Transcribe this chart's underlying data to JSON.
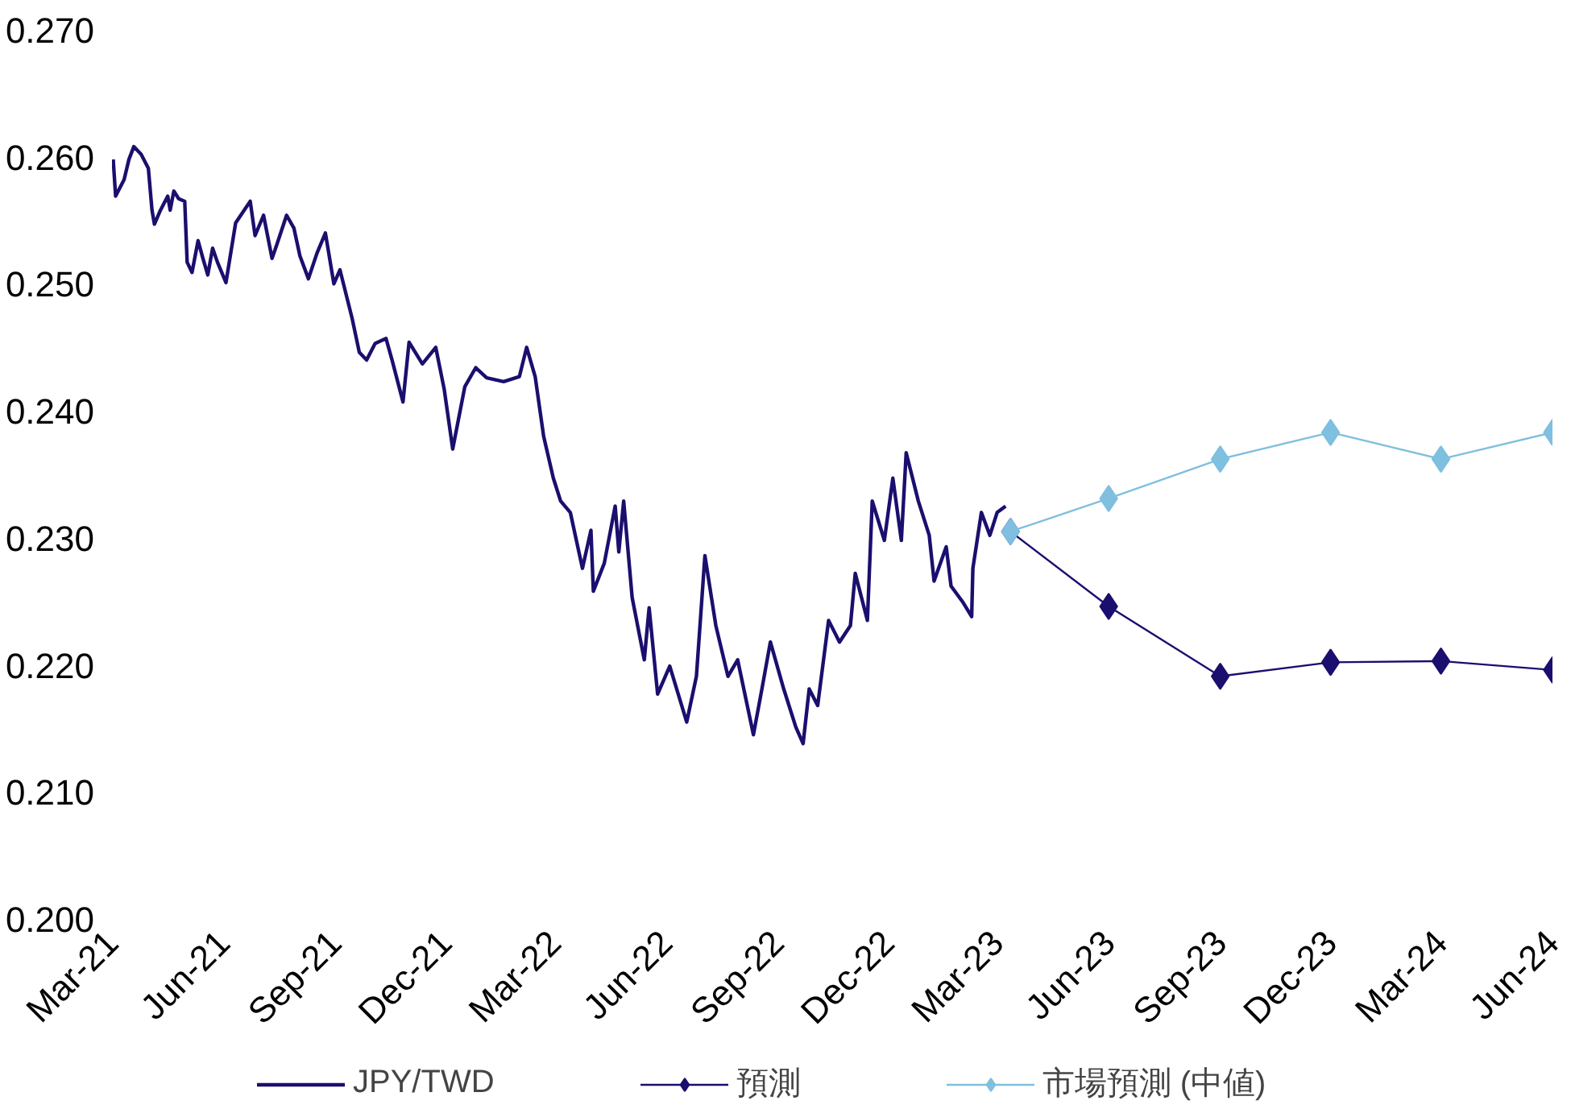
{
  "chart_data": {
    "type": "line",
    "xlim": [
      "2021-03-01",
      "2024-06-01"
    ],
    "ylim": [
      0.2,
      0.27
    ],
    "yticks": [
      {
        "value": 0.2,
        "label": "0.200"
      },
      {
        "value": 0.21,
        "label": "0.210"
      },
      {
        "value": 0.22,
        "label": "0.220"
      },
      {
        "value": 0.23,
        "label": "0.230"
      },
      {
        "value": 0.24,
        "label": "0.240"
      },
      {
        "value": 0.25,
        "label": "0.250"
      },
      {
        "value": 0.26,
        "label": "0.260"
      },
      {
        "value": 0.27,
        "label": "0.270"
      }
    ],
    "xticks": [
      {
        "value": "2021-03-01",
        "label": "Mar-21"
      },
      {
        "value": "2021-06-01",
        "label": "Jun-21"
      },
      {
        "value": "2021-09-01",
        "label": "Sep-21"
      },
      {
        "value": "2021-12-01",
        "label": "Dec-21"
      },
      {
        "value": "2022-03-01",
        "label": "Mar-22"
      },
      {
        "value": "2022-06-01",
        "label": "Jun-22"
      },
      {
        "value": "2022-09-01",
        "label": "Sep-22"
      },
      {
        "value": "2022-12-01",
        "label": "Dec-22"
      },
      {
        "value": "2023-03-01",
        "label": "Mar-23"
      },
      {
        "value": "2023-06-01",
        "label": "Jun-23"
      },
      {
        "value": "2023-09-01",
        "label": "Sep-23"
      },
      {
        "value": "2023-12-01",
        "label": "Dec-23"
      },
      {
        "value": "2024-03-01",
        "label": "Mar-24"
      },
      {
        "value": "2024-06-01",
        "label": "Jun-24"
      }
    ],
    "grid": false,
    "legend": "bottom",
    "series": [
      {
        "name": "JPY/TWD",
        "color": "#1a0f6e",
        "marker": "none",
        "x": [
          "2021-03-02",
          "2021-03-04",
          "2021-03-11",
          "2021-03-15",
          "2021-03-19",
          "2021-03-25",
          "2021-03-31",
          "2021-04-03",
          "2021-04-05",
          "2021-04-10",
          "2021-04-16",
          "2021-04-18",
          "2021-04-21",
          "2021-04-25",
          "2021-04-30",
          "2021-05-02",
          "2021-05-06",
          "2021-05-11",
          "2021-05-15",
          "2021-05-19",
          "2021-05-23",
          "2021-05-27",
          "2021-06-03",
          "2021-06-11",
          "2021-06-23",
          "2021-06-27",
          "2021-07-04",
          "2021-07-11",
          "2021-07-15",
          "2021-07-23",
          "2021-07-29",
          "2021-08-03",
          "2021-08-10",
          "2021-08-17",
          "2021-08-24",
          "2021-08-31",
          "2021-09-05",
          "2021-09-15",
          "2021-09-21",
          "2021-09-27",
          "2021-10-04",
          "2021-10-13",
          "2021-10-18",
          "2021-10-27",
          "2021-11-01",
          "2021-11-12",
          "2021-11-23",
          "2021-11-30",
          "2021-12-07",
          "2021-12-17",
          "2021-12-26",
          "2022-01-04",
          "2022-01-18",
          "2022-01-31",
          "2022-02-06",
          "2022-02-13",
          "2022-02-20",
          "2022-02-28",
          "2022-03-06",
          "2022-03-14",
          "2022-03-24",
          "2022-03-31",
          "2022-04-02",
          "2022-04-11",
          "2022-04-20",
          "2022-04-23",
          "2022-04-27",
          "2022-05-04",
          "2022-05-14",
          "2022-05-18",
          "2022-05-25",
          "2022-06-04",
          "2022-06-18",
          "2022-06-26",
          "2022-07-03",
          "2022-07-12",
          "2022-07-22",
          "2022-07-30",
          "2022-08-12",
          "2022-08-19",
          "2022-08-26",
          "2022-09-06",
          "2022-09-16",
          "2022-09-22",
          "2022-09-27",
          "2022-10-04",
          "2022-10-13",
          "2022-10-22",
          "2022-10-31",
          "2022-11-04",
          "2022-11-14",
          "2022-11-18",
          "2022-11-28",
          "2022-12-05",
          "2022-12-12",
          "2022-12-16",
          "2022-12-26",
          "2023-01-04",
          "2023-01-08",
          "2023-01-18",
          "2023-01-22",
          "2023-02-01",
          "2023-02-08",
          "2023-02-09",
          "2023-02-16",
          "2023-02-23",
          "2023-03-01",
          "2023-03-08"
        ],
        "values": [
          0.2598,
          0.2569,
          0.2582,
          0.2598,
          0.2608,
          0.2602,
          0.2591,
          0.2558,
          0.2547,
          0.2558,
          0.2569,
          0.2558,
          0.2573,
          0.2567,
          0.2565,
          0.2517,
          0.2509,
          0.2534,
          0.252,
          0.2507,
          0.2528,
          0.2517,
          0.2501,
          0.2548,
          0.2565,
          0.2538,
          0.2554,
          0.252,
          0.2531,
          0.2554,
          0.2544,
          0.2522,
          0.2504,
          0.2524,
          0.254,
          0.25,
          0.2511,
          0.2473,
          0.2446,
          0.244,
          0.2453,
          0.2457,
          0.244,
          0.2407,
          0.2454,
          0.2437,
          0.245,
          0.2417,
          0.237,
          0.2419,
          0.2434,
          0.2426,
          0.2423,
          0.2427,
          0.245,
          0.2427,
          0.238,
          0.2347,
          0.2329,
          0.232,
          0.2276,
          0.2306,
          0.2258,
          0.228,
          0.2325,
          0.2289,
          0.2329,
          0.2253,
          0.2204,
          0.2245,
          0.2177,
          0.2199,
          0.2155,
          0.2191,
          0.2286,
          0.2231,
          0.2191,
          0.2204,
          0.2145,
          0.2181,
          0.2218,
          0.2181,
          0.2151,
          0.2138,
          0.2181,
          0.2168,
          0.2235,
          0.2218,
          0.2231,
          0.2272,
          0.2235,
          0.2329,
          0.2298,
          0.2347,
          0.2298,
          0.2367,
          0.2329,
          0.2302,
          0.2266,
          0.2293,
          0.2262,
          0.2249,
          0.2238,
          0.2276,
          0.232,
          0.2302,
          0.232,
          0.2325
        ]
      },
      {
        "name": "預測",
        "color": "#1a0f6e",
        "marker": "diamond",
        "x": [
          "2023-03-12",
          "2023-06-01",
          "2023-09-01",
          "2023-12-01",
          "2024-03-01",
          "2024-06-01"
        ],
        "values": [
          0.2305,
          0.2246,
          0.2191,
          0.2202,
          0.2203,
          0.2196
        ]
      },
      {
        "name": "市場預測 (中値)",
        "color": "#7fbfdf",
        "marker": "diamond",
        "x": [
          "2023-03-12",
          "2023-06-01",
          "2023-09-01",
          "2023-12-01",
          "2024-03-01",
          "2024-06-01"
        ],
        "values": [
          0.2305,
          0.2331,
          0.2362,
          0.2383,
          0.2362,
          0.2383
        ]
      }
    ]
  }
}
